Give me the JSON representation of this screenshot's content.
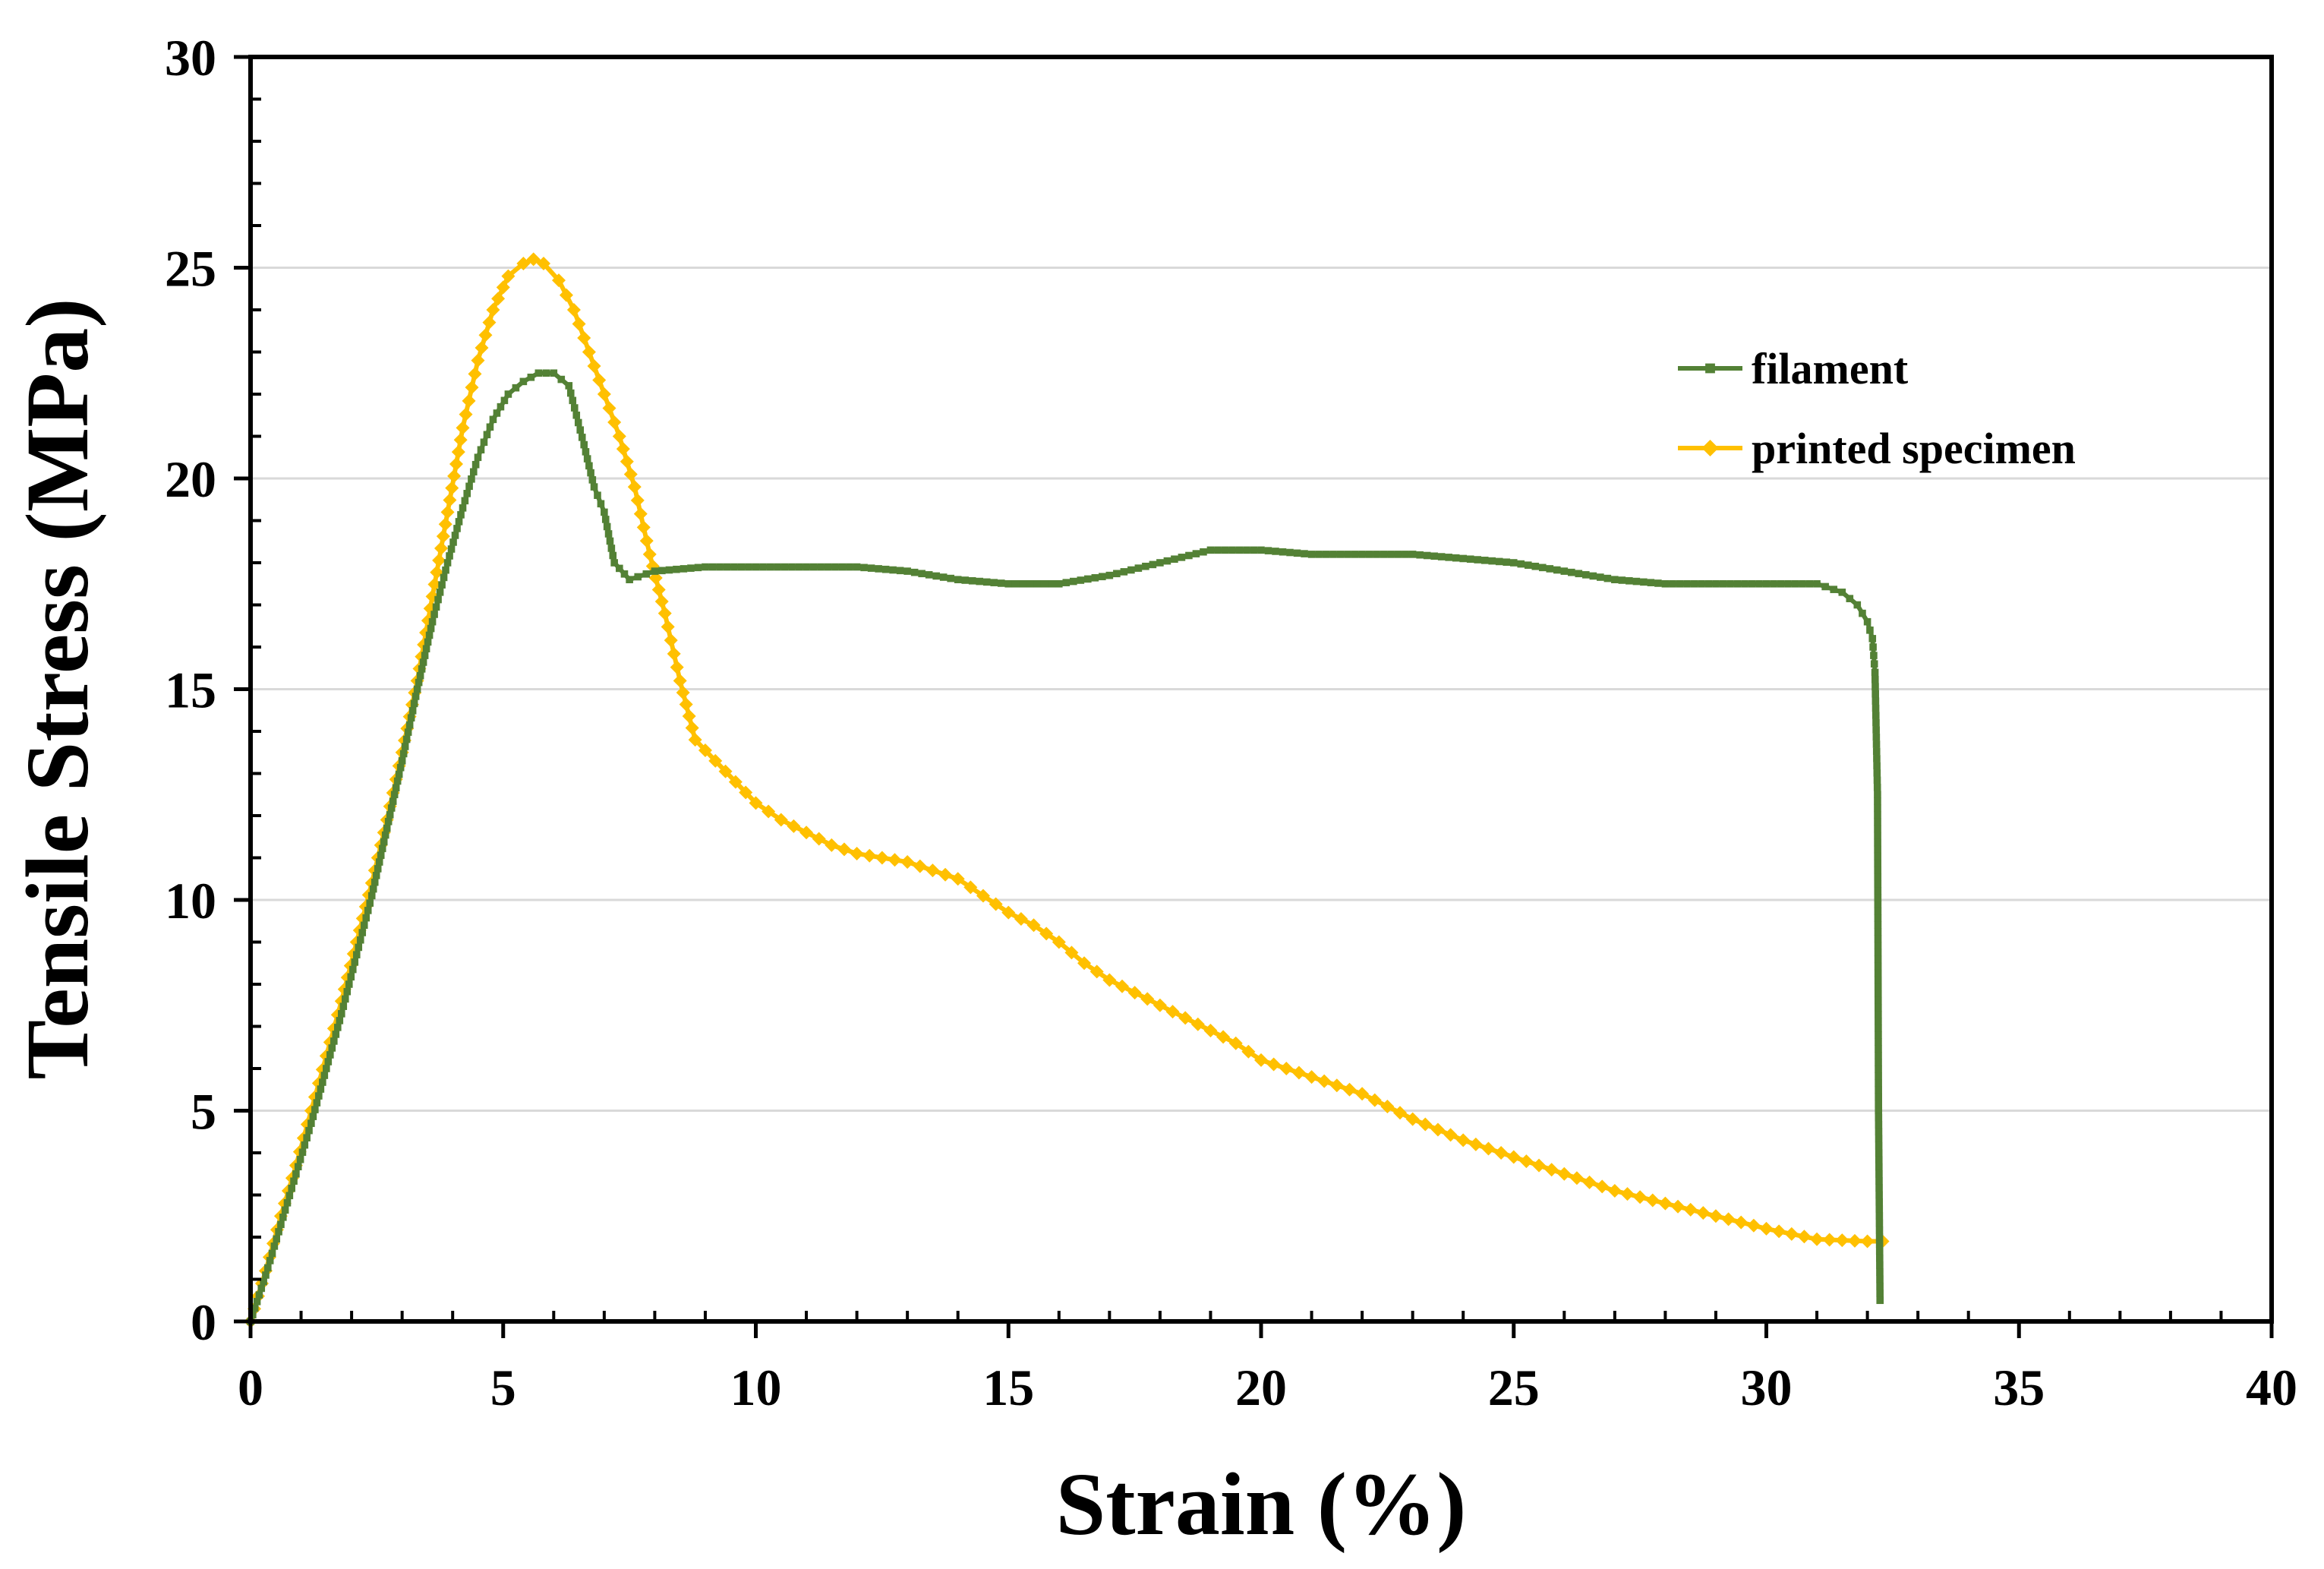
{
  "chart_data": {
    "type": "line",
    "title": "",
    "xlabel": "Strain (%)",
    "ylabel": "Tensile Stress (MPa)",
    "xlim": [
      0,
      40
    ],
    "ylim": [
      0,
      30
    ],
    "xticks": [
      0,
      5,
      10,
      15,
      20,
      25,
      30,
      35,
      40
    ],
    "yticks": [
      0,
      5,
      10,
      15,
      20,
      25,
      30
    ],
    "grid": "horizontal",
    "legend_position": "upper-right",
    "series": [
      {
        "name": "filament",
        "color": "#538135",
        "marker": "square",
        "x": [
          0,
          0.3,
          0.6,
          0.9,
          1.2,
          1.5,
          1.8,
          2.1,
          2.4,
          2.7,
          3.0,
          3.3,
          3.6,
          3.9,
          4.2,
          4.5,
          4.8,
          5.1,
          5.4,
          5.7,
          6.0,
          6.3,
          6.6,
          6.8,
          7.0,
          7.2,
          7.5,
          8.0,
          9.0,
          10.0,
          11.0,
          12.0,
          13.0,
          14.0,
          15.0,
          16.0,
          17.0,
          18.0,
          19.0,
          20.0,
          21.0,
          22.0,
          23.0,
          24.0,
          25.0,
          26.0,
          27.0,
          28.0,
          29.0,
          30.0,
          31.0,
          31.5,
          31.8,
          32.0,
          32.1,
          32.15,
          32.2,
          32.22,
          32.25
        ],
        "y": [
          0,
          1.1,
          2.3,
          3.5,
          4.7,
          6.0,
          7.3,
          8.7,
          10.1,
          11.7,
          13.3,
          15.0,
          16.6,
          18.0,
          19.3,
          20.5,
          21.4,
          22.0,
          22.3,
          22.5,
          22.5,
          22.2,
          20.8,
          19.8,
          19.2,
          18.0,
          17.6,
          17.8,
          17.9,
          17.9,
          17.9,
          17.9,
          17.8,
          17.6,
          17.5,
          17.5,
          17.7,
          18.0,
          18.3,
          18.3,
          18.2,
          18.2,
          18.2,
          18.1,
          18.0,
          17.8,
          17.6,
          17.5,
          17.5,
          17.5,
          17.5,
          17.3,
          17.0,
          16.6,
          16.2,
          15.4,
          12.5,
          5.0,
          0.5
        ]
      },
      {
        "name": "printed specimen",
        "color": "#FFC000",
        "marker": "diamond",
        "x": [
          0,
          0.3,
          0.6,
          0.9,
          1.2,
          1.5,
          1.8,
          2.1,
          2.4,
          2.7,
          3.0,
          3.3,
          3.6,
          3.9,
          4.2,
          4.5,
          4.8,
          5.1,
          5.4,
          5.6,
          5.8,
          6.1,
          6.4,
          6.7,
          7.0,
          7.3,
          7.6,
          7.9,
          8.2,
          8.5,
          8.8,
          9.2,
          9.6,
          10.0,
          10.5,
          11.0,
          11.5,
          12.0,
          12.5,
          13.0,
          13.5,
          14.0,
          14.5,
          15.0,
          15.5,
          16.0,
          16.5,
          17.0,
          17.5,
          18.0,
          18.5,
          19.0,
          19.5,
          20.0,
          21.0,
          22.0,
          23.0,
          24.0,
          25.0,
          26.0,
          27.0,
          28.0,
          29.0,
          30.0,
          31.0,
          32.0,
          32.3
        ],
        "y": [
          0,
          1.2,
          2.5,
          3.7,
          5.0,
          6.3,
          7.6,
          9.0,
          10.4,
          11.9,
          13.5,
          15.2,
          17.2,
          19.2,
          21.2,
          22.8,
          24.0,
          24.8,
          25.1,
          25.2,
          25.1,
          24.7,
          24.0,
          23.0,
          22.0,
          21.0,
          19.8,
          18.2,
          16.8,
          15.2,
          13.8,
          13.3,
          12.8,
          12.3,
          11.9,
          11.6,
          11.3,
          11.1,
          11.0,
          10.9,
          10.7,
          10.5,
          10.1,
          9.7,
          9.4,
          9.0,
          8.5,
          8.1,
          7.8,
          7.5,
          7.2,
          6.9,
          6.6,
          6.2,
          5.8,
          5.4,
          4.8,
          4.3,
          3.9,
          3.5,
          3.1,
          2.8,
          2.5,
          2.2,
          1.95,
          1.9,
          1.9
        ]
      }
    ]
  }
}
